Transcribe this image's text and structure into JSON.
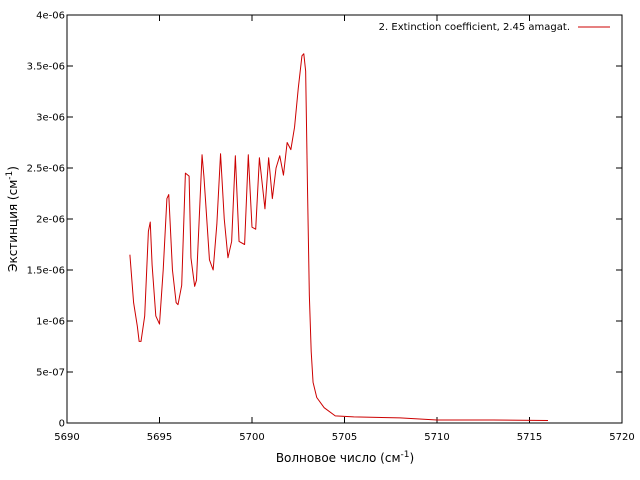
{
  "chart_data": {
    "type": "line",
    "xlabel": {
      "main": "Волновое число (см",
      "sup": "-1",
      "tail": ")"
    },
    "ylabel": {
      "main": "Экстинция (см",
      "sup": "-1",
      "tail": ")"
    },
    "xlim": [
      5690,
      5720
    ],
    "ylim": [
      0,
      4e-06
    ],
    "x_ticks": [
      {
        "value": 5690,
        "label": "5690"
      },
      {
        "value": 5695,
        "label": "5695"
      },
      {
        "value": 5700,
        "label": "5700"
      },
      {
        "value": 5705,
        "label": "5705"
      },
      {
        "value": 5710,
        "label": "5710"
      },
      {
        "value": 5715,
        "label": "5715"
      },
      {
        "value": 5720,
        "label": "5720"
      }
    ],
    "y_ticks": [
      {
        "value": 0,
        "label": "0"
      },
      {
        "value": 5e-07,
        "label": "5e-07"
      },
      {
        "value": 1e-06,
        "label": "1e-06"
      },
      {
        "value": 1.5e-06,
        "label": "1.5e-06"
      },
      {
        "value": 2e-06,
        "label": "2e-06"
      },
      {
        "value": 2.5e-06,
        "label": "2.5e-06"
      },
      {
        "value": 3e-06,
        "label": "3e-06"
      },
      {
        "value": 3.5e-06,
        "label": "3.5e-06"
      },
      {
        "value": 4e-06,
        "label": "4e-06"
      }
    ],
    "grid": false,
    "legend_position": "top-right",
    "series": [
      {
        "name": "2. Extinction coefficient, 2.45 amagat.",
        "color": "#cc0000",
        "x": [
          5693.4,
          5693.6,
          5693.8,
          5693.9,
          5694.0,
          5694.2,
          5694.4,
          5694.5,
          5694.6,
          5694.8,
          5695.0,
          5695.2,
          5695.4,
          5695.5,
          5695.7,
          5695.9,
          5696.0,
          5696.2,
          5696.4,
          5696.6,
          5696.7,
          5696.9,
          5697.0,
          5697.3,
          5697.4,
          5697.5,
          5697.7,
          5697.9,
          5698.1,
          5698.3,
          5698.5,
          5698.7,
          5698.9,
          5699.1,
          5699.3,
          5699.6,
          5699.8,
          5700.0,
          5700.2,
          5700.4,
          5700.7,
          5700.9,
          5701.1,
          5701.3,
          5701.5,
          5701.7,
          5701.9,
          5702.1,
          5702.3,
          5702.5,
          5702.7,
          5702.8,
          5702.9,
          5703.0,
          5703.1,
          5703.2,
          5703.3,
          5703.5,
          5703.9,
          5704.5,
          5705.5,
          5708.0,
          5710.0,
          5713.0,
          5716.0
        ],
        "y": [
          1.65e-06,
          1.18e-06,
          9.5e-07,
          8e-07,
          8e-07,
          1.05e-06,
          1.88e-06,
          1.97e-06,
          1.55e-06,
          1.05e-06,
          9.7e-07,
          1.5e-06,
          2.2e-06,
          2.24e-06,
          1.5e-06,
          1.18e-06,
          1.16e-06,
          1.35e-06,
          2.45e-06,
          2.42e-06,
          1.62e-06,
          1.34e-06,
          1.4e-06,
          2.63e-06,
          2.42e-06,
          2.15e-06,
          1.6e-06,
          1.5e-06,
          1.95e-06,
          2.64e-06,
          2e-06,
          1.62e-06,
          1.78e-06,
          2.62e-06,
          1.78e-06,
          1.75e-06,
          2.63e-06,
          1.92e-06,
          1.9e-06,
          2.6e-06,
          2.1e-06,
          2.6e-06,
          2.2e-06,
          2.5e-06,
          2.62e-06,
          2.43e-06,
          2.75e-06,
          2.68e-06,
          2.9e-06,
          3.28e-06,
          3.6e-06,
          3.62e-06,
          3.45e-06,
          2.3e-06,
          1.25e-06,
          7e-07,
          4e-07,
          2.5e-07,
          1.5e-07,
          7e-08,
          6e-08,
          5e-08,
          3e-08,
          3e-08,
          2.5e-08
        ]
      }
    ]
  }
}
